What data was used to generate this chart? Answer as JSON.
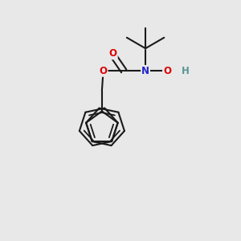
{
  "background_color": "#e8e8e8",
  "bond_color": "#1a1a1a",
  "O_color": "#dd0000",
  "N_color": "#2222cc",
  "H_color": "#5a9595",
  "lw": 1.5,
  "lw_inner": 1.3,
  "figsize": [
    3.0,
    3.0
  ],
  "dpi": 100,
  "fs": 8.5,
  "xlim": [
    0.05,
    0.95
  ],
  "ylim": [
    0.05,
    0.95
  ]
}
